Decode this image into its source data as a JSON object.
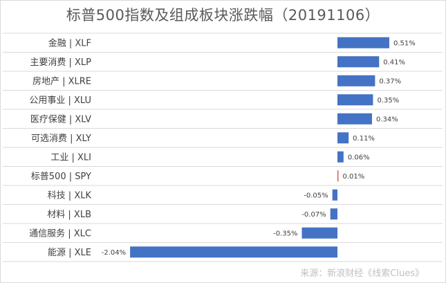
{
  "chart_data": {
    "type": "bar",
    "orientation": "horizontal",
    "title": "标普500指数及组成板块涨跌幅（20191106）",
    "categories": [
      "金融 | XLF",
      "主要消费 | XLP",
      "房地产 | XLRE",
      "公用事业 | XLU",
      "医疗保健 | XLV",
      "可选消费 | XLY",
      "工业 | XLI",
      "标普500 | SPY",
      "科技 | XLK",
      "材料 | XLB",
      "通信服务 | XLC",
      "能源 | XLE"
    ],
    "values": [
      0.51,
      0.41,
      0.37,
      0.35,
      0.34,
      0.11,
      0.06,
      0.01,
      -0.05,
      -0.07,
      -0.35,
      -2.04
    ],
    "value_labels": [
      "0.51%",
      "0.41%",
      "0.37%",
      "0.35%",
      "0.34%",
      "0.11%",
      "0.06%",
      "0.01%",
      "-0.05%",
      "-0.07%",
      "-0.35%",
      "-2.04%"
    ],
    "unit": "%",
    "colors": {
      "bar": "#4472c4",
      "highlight": "#e8525a",
      "grid": "#d9d9d9",
      "text": "#404040"
    },
    "highlight_category": "标普500 | SPY",
    "grid": true,
    "legend": "none"
  },
  "source": "来源：新浪财经《线索Clues》"
}
